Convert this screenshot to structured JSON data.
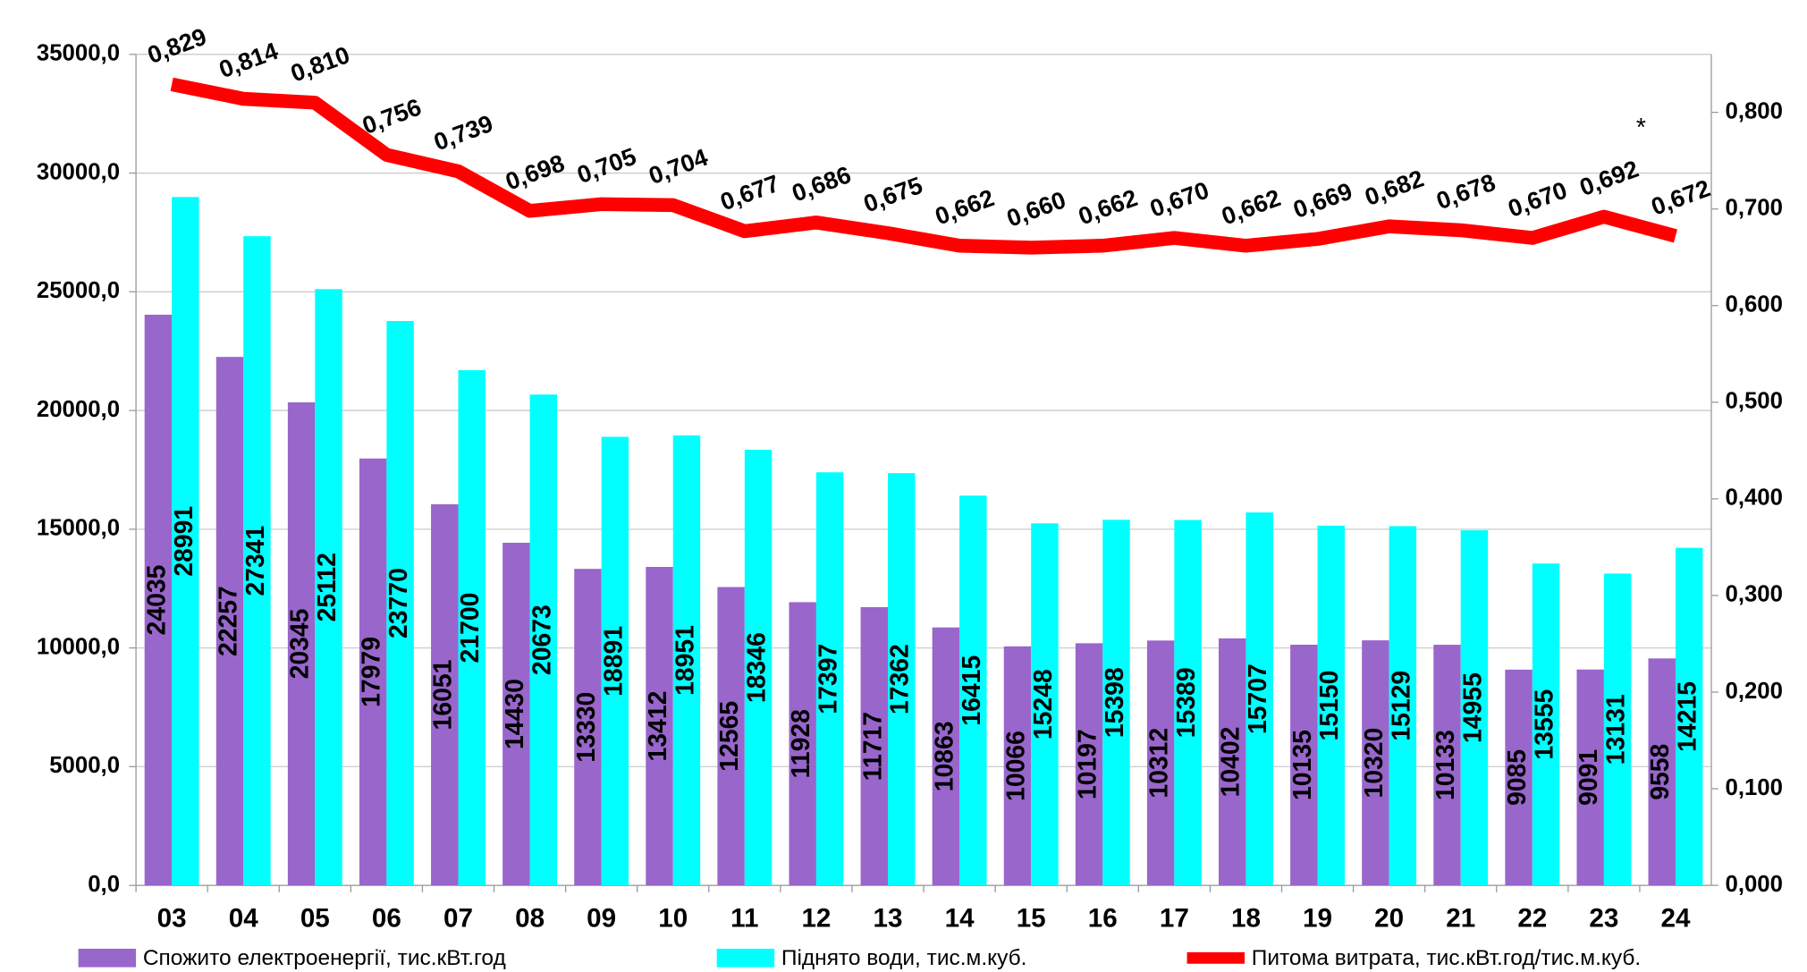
{
  "chart_data": {
    "type": "bar",
    "categories": [
      "03",
      "04",
      "05",
      "06",
      "07",
      "08",
      "09",
      "10",
      "11",
      "12",
      "13",
      "14",
      "15",
      "16",
      "17",
      "18",
      "19",
      "20",
      "21",
      "22",
      "23",
      "24"
    ],
    "series": [
      {
        "name": "Спожито електроенергії, тис.кВт.год",
        "color": "#9966cc",
        "values": [
          24035,
          22257,
          20345,
          17979,
          16051,
          14430,
          13330,
          13412,
          12565,
          11928,
          11717,
          10863,
          10066,
          10197,
          10312,
          10402,
          10135,
          10320,
          10133,
          9085,
          9091,
          9558
        ]
      },
      {
        "name": "Піднято води, тис.м.куб.",
        "color": "#00ffff",
        "values": [
          28991,
          27341,
          25112,
          23770,
          21700,
          20673,
          18891,
          18951,
          18346,
          17397,
          17362,
          16415,
          15248,
          15398,
          15389,
          15707,
          15150,
          15129,
          14955,
          13555,
          13131,
          14215
        ]
      },
      {
        "name": "Питома витрата, тис.кВт.год/тис.м.куб.",
        "color": "#ff0000",
        "type": "line",
        "axis": "y2",
        "values": [
          0.829,
          0.814,
          0.81,
          0.756,
          0.739,
          0.698,
          0.705,
          0.704,
          0.677,
          0.686,
          0.675,
          0.662,
          0.66,
          0.662,
          0.67,
          0.662,
          0.669,
          0.682,
          0.678,
          0.67,
          0.692,
          0.672
        ],
        "value_labels": [
          "0,829",
          "0,814",
          "0,810",
          "0,756",
          "0,739",
          "0,698",
          "0,705",
          "0,704",
          "0,677",
          "0,686",
          "0,675",
          "0,662",
          "0,660",
          "0,662",
          "0,670",
          "0,662",
          "0,669",
          "0,682",
          "0,678",
          "0,670",
          "0,692",
          "0,672"
        ]
      }
    ],
    "ylim": [
      0,
      35000
    ],
    "yticks": [
      {
        "value": 0,
        "label": "0,0"
      },
      {
        "value": 5000,
        "label": "5000,0"
      },
      {
        "value": 10000,
        "label": "10000,0"
      },
      {
        "value": 15000,
        "label": "15000,0"
      },
      {
        "value": 20000,
        "label": "20000,0"
      },
      {
        "value": 25000,
        "label": "25000,0"
      },
      {
        "value": 30000,
        "label": "30000,0"
      },
      {
        "value": 35000,
        "label": "35000,0"
      }
    ],
    "y2lim": [
      0,
      0.86
    ],
    "y2ticks": [
      {
        "value": 0,
        "label": "0,000"
      },
      {
        "value": 0.1,
        "label": "0,100"
      },
      {
        "value": 0.2,
        "label": "0,200"
      },
      {
        "value": 0.3,
        "label": "0,300"
      },
      {
        "value": 0.4,
        "label": "0,400"
      },
      {
        "value": 0.5,
        "label": "0,500"
      },
      {
        "value": 0.6,
        "label": "0,600"
      },
      {
        "value": 0.7,
        "label": "0,700"
      },
      {
        "value": 0.8,
        "label": "0,800"
      }
    ],
    "annotations": [
      "*"
    ],
    "grid": true,
    "legend": "bottom"
  }
}
